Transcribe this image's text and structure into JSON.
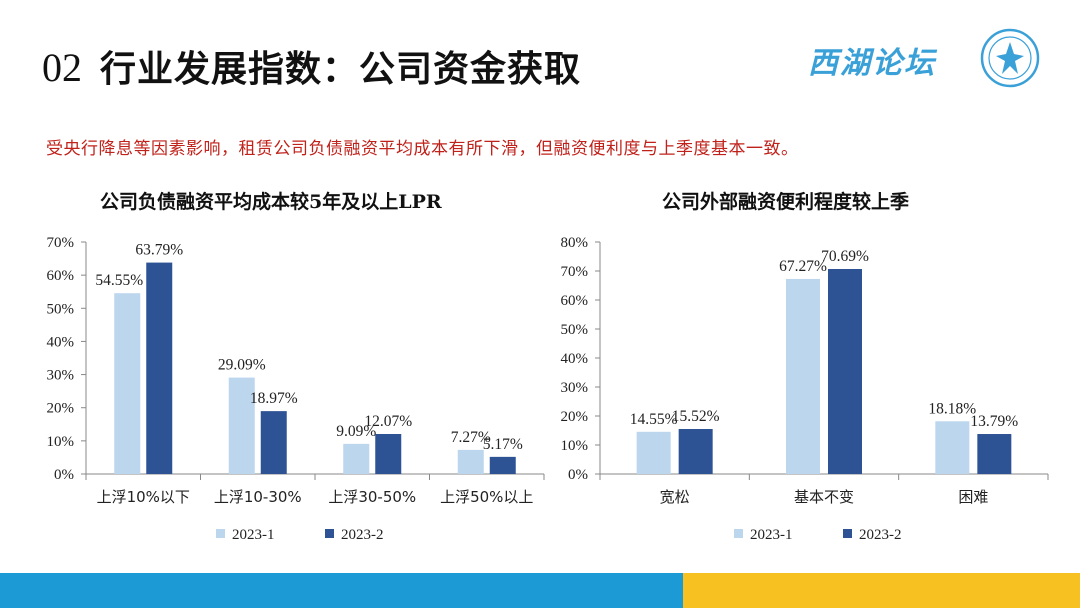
{
  "header": {
    "number": "02",
    "title": "行业发展指数：公司资金获取",
    "brand": "西湖论坛",
    "logo_icon": "forum-seal-logo"
  },
  "subtitle": "受央行降息等因素影响，租赁公司负债融资平均成本有所下滑，但融资便利度与上季度基本一致。",
  "colors": {
    "series_light": "#bcd6ee",
    "series_dark": "#2e5395",
    "subtitle": "#c0211a",
    "footer_blue": "#1b9ad6",
    "footer_yellow": "#f6c121"
  },
  "chart_data": [
    {
      "type": "bar",
      "title": "公司负债融资平均成本较5年及以上LPR",
      "categories": [
        "上浮10%以下",
        "上浮10-30%",
        "上浮30-50%",
        "上浮50%以上"
      ],
      "series": [
        {
          "name": "2023-1",
          "values": [
            54.55,
            29.09,
            9.09,
            7.27
          ],
          "labels": [
            "54.55%",
            "29.09%",
            "9.09%",
            "7.27%"
          ]
        },
        {
          "name": "2023-2",
          "values": [
            63.79,
            18.97,
            12.07,
            5.17
          ],
          "labels": [
            "63.79%",
            "18.97%",
            "12.07%",
            "5.17%"
          ]
        }
      ],
      "ylim": [
        0,
        70
      ],
      "yticks": [
        "0%",
        "10%",
        "20%",
        "30%",
        "40%",
        "50%",
        "60%",
        "70%"
      ],
      "legend": "bottom",
      "grid": false
    },
    {
      "type": "bar",
      "title": "公司外部融资便利程度较上季",
      "categories": [
        "宽松",
        "基本不变",
        "困难"
      ],
      "series": [
        {
          "name": "2023-1",
          "values": [
            14.55,
            67.27,
            18.18
          ],
          "labels": [
            "14.55%",
            "67.27%",
            "18.18%"
          ]
        },
        {
          "name": "2023-2",
          "values": [
            15.52,
            70.69,
            13.79
          ],
          "labels": [
            "15.52%",
            "70.69%",
            "13.79%"
          ]
        }
      ],
      "ylim": [
        0,
        80
      ],
      "yticks": [
        "0%",
        "10%",
        "20%",
        "30%",
        "40%",
        "50%",
        "60%",
        "70%",
        "80%"
      ],
      "legend": "bottom",
      "grid": false
    }
  ]
}
